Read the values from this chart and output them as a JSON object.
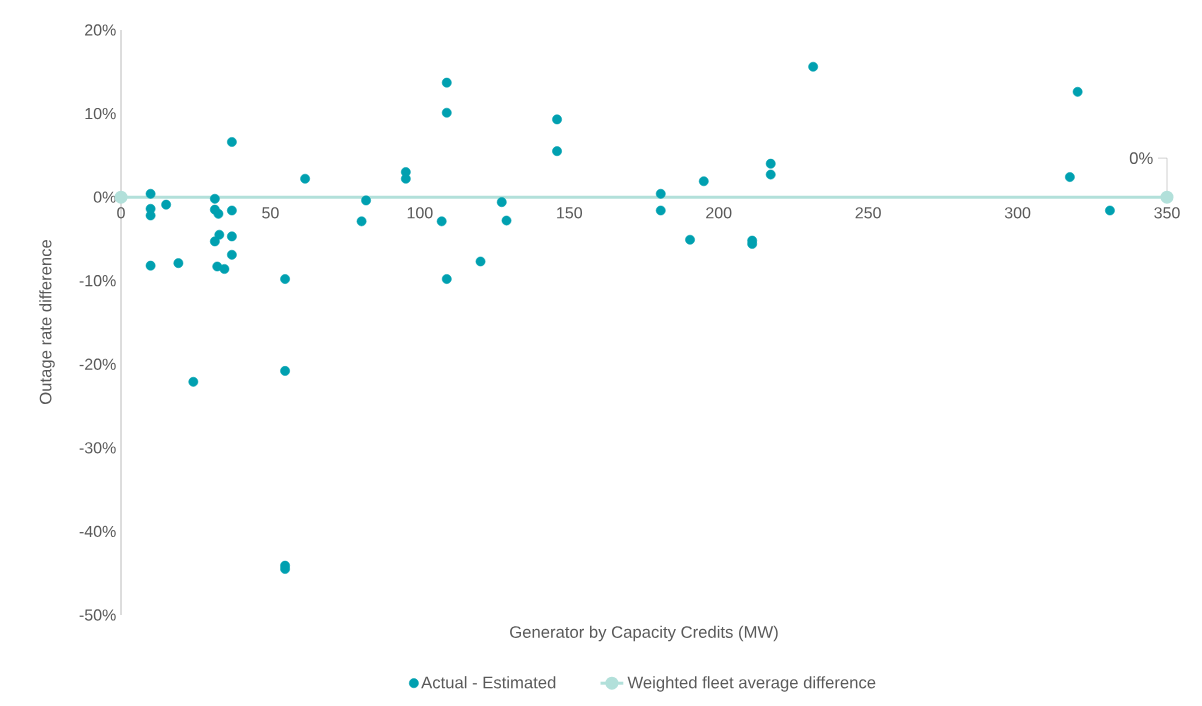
{
  "chart_data": {
    "type": "scatter",
    "xlabel": "Generator  by Capacity Credits (MW)",
    "ylabel": "Outage rate difference",
    "xlim": [
      0,
      350
    ],
    "ylim": [
      -50,
      20
    ],
    "xticks": [
      0,
      50,
      100,
      150,
      200,
      250,
      300,
      350
    ],
    "yticks": [
      {
        "value": -50,
        "label": "-50%"
      },
      {
        "value": -40,
        "label": "-40%"
      },
      {
        "value": -30,
        "label": "-30%"
      },
      {
        "value": -20,
        "label": "-20%"
      },
      {
        "value": -10,
        "label": "-10%"
      },
      {
        "value": 0,
        "label": "0%"
      },
      {
        "value": 10,
        "label": "10%"
      },
      {
        "value": 20,
        "label": "20%"
      }
    ],
    "marker": "circle",
    "legend": "bottom",
    "annotations": [
      {
        "text": "0%",
        "x": 350,
        "y": 0
      }
    ],
    "series": [
      {
        "name": "Actual - Estimated",
        "color": "#00a0b0",
        "x": [
          9.9,
          9.9,
          9.9,
          15.1,
          31.4,
          31.4,
          32.6,
          37.1,
          37.1,
          61.6,
          32.9,
          31.4,
          37.1,
          37.1,
          9.9,
          19.2,
          32.2,
          34.6,
          54.9,
          24.2,
          54.9,
          54.9,
          54.9,
          109,
          109,
          95.3,
          95.3,
          82,
          80.5,
          107.3,
          109,
          120.3,
          127.4,
          129,
          145.9,
          145.9,
          180.6,
          180.6,
          190.4,
          195,
          231.6,
          320.1,
          217.4,
          217.4,
          317.5,
          330.9,
          211.2,
          211.2
        ],
        "values": [
          0.4,
          -1.4,
          -2.2,
          -0.9,
          -0.2,
          -1.5,
          -2,
          -1.6,
          6.6,
          2.2,
          -4.5,
          -5.3,
          -4.7,
          -6.9,
          -8.2,
          -7.9,
          -8.3,
          -8.6,
          -9.8,
          -22.1,
          -20.8,
          -44.1,
          -44.5,
          13.7,
          10.1,
          3,
          2.2,
          -0.4,
          -2.9,
          -2.9,
          -9.8,
          -7.7,
          -0.6,
          -2.8,
          9.3,
          5.5,
          0.4,
          -1.6,
          -5.1,
          1.9,
          15.6,
          12.6,
          4,
          2.7,
          2.4,
          -1.6,
          -5.2,
          -5.6
        ]
      },
      {
        "name": "Weighted fleet average difference",
        "type": "line",
        "color": "#b2e0da",
        "x": [
          0,
          350
        ],
        "values": [
          0,
          0
        ]
      }
    ]
  }
}
